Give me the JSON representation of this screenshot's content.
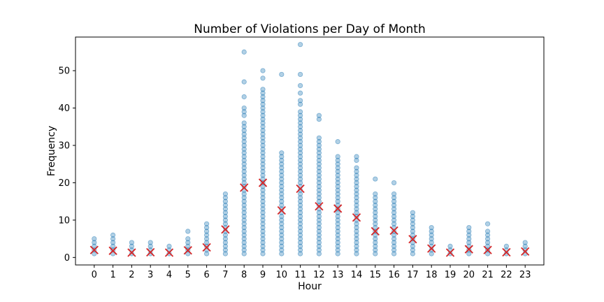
{
  "chart_data": {
    "type": "scatter",
    "title": "Number of Violations per Day of Month",
    "xlabel": "Hour",
    "ylabel": "Frequency",
    "xlim": [
      -1,
      24
    ],
    "ylim": [
      -2,
      59
    ],
    "xticks": [
      0,
      1,
      2,
      3,
      4,
      5,
      6,
      7,
      8,
      9,
      10,
      11,
      12,
      13,
      14,
      15,
      16,
      17,
      18,
      19,
      20,
      21,
      22,
      23
    ],
    "yticks": [
      0,
      10,
      20,
      30,
      40,
      50
    ],
    "grid": false,
    "legend": "none",
    "colors": {
      "points": "#1f77b4",
      "mean_marker": "#d62728"
    },
    "series": [
      {
        "marker": "circle",
        "hours": [
          {
            "x": 0,
            "values": [
              1,
              2,
              3,
              4,
              5
            ]
          },
          {
            "x": 1,
            "values": [
              1,
              2,
              3,
              4,
              5,
              6
            ]
          },
          {
            "x": 2,
            "values": [
              1,
              2,
              3,
              4
            ]
          },
          {
            "x": 3,
            "values": [
              1,
              2,
              3,
              4
            ]
          },
          {
            "x": 4,
            "values": [
              1,
              2,
              3
            ]
          },
          {
            "x": 5,
            "values": [
              1,
              2,
              3,
              4,
              5,
              7
            ]
          },
          {
            "x": 6,
            "values": [
              1,
              2,
              3,
              4,
              5,
              6,
              7,
              8,
              9
            ]
          },
          {
            "x": 7,
            "values": [
              1,
              2,
              3,
              4,
              5,
              6,
              7,
              8,
              9,
              10,
              11,
              12,
              13,
              14,
              15,
              16,
              17
            ]
          },
          {
            "x": 8,
            "values": [
              1,
              2,
              3,
              4,
              5,
              6,
              7,
              8,
              9,
              10,
              11,
              12,
              13,
              14,
              15,
              16,
              17,
              18,
              19,
              20,
              21,
              22,
              23,
              24,
              25,
              26,
              27,
              28,
              29,
              30,
              31,
              32,
              33,
              34,
              35,
              36,
              38,
              39,
              40,
              43,
              47,
              55
            ]
          },
          {
            "x": 9,
            "values": [
              1,
              2,
              3,
              4,
              5,
              6,
              7,
              8,
              9,
              10,
              11,
              12,
              13,
              14,
              15,
              16,
              17,
              18,
              19,
              20,
              21,
              22,
              23,
              24,
              25,
              26,
              27,
              28,
              29,
              30,
              31,
              32,
              33,
              34,
              35,
              36,
              37,
              38,
              39,
              40,
              41,
              42,
              43,
              44,
              45,
              48,
              50
            ]
          },
          {
            "x": 10,
            "values": [
              1,
              2,
              3,
              4,
              5,
              6,
              7,
              8,
              9,
              10,
              11,
              12,
              13,
              14,
              15,
              16,
              17,
              18,
              19,
              20,
              21,
              22,
              23,
              24,
              25,
              26,
              27,
              28,
              49
            ]
          },
          {
            "x": 11,
            "values": [
              1,
              2,
              3,
              4,
              5,
              6,
              7,
              8,
              9,
              10,
              11,
              12,
              13,
              14,
              15,
              16,
              17,
              18,
              19,
              20,
              21,
              22,
              23,
              24,
              25,
              26,
              27,
              28,
              29,
              30,
              31,
              32,
              33,
              34,
              35,
              36,
              37,
              38,
              39,
              41,
              42,
              44,
              46,
              49,
              57
            ]
          },
          {
            "x": 12,
            "values": [
              1,
              2,
              3,
              4,
              5,
              6,
              7,
              8,
              9,
              10,
              11,
              12,
              13,
              14,
              15,
              16,
              17,
              18,
              19,
              20,
              21,
              22,
              23,
              24,
              25,
              26,
              27,
              28,
              29,
              30,
              31,
              32,
              37,
              38
            ]
          },
          {
            "x": 13,
            "values": [
              1,
              2,
              3,
              4,
              5,
              6,
              7,
              8,
              9,
              10,
              11,
              12,
              13,
              14,
              15,
              16,
              17,
              18,
              19,
              20,
              21,
              22,
              23,
              24,
              25,
              26,
              27,
              31
            ]
          },
          {
            "x": 14,
            "values": [
              1,
              2,
              3,
              4,
              5,
              6,
              7,
              8,
              9,
              10,
              11,
              12,
              13,
              14,
              15,
              16,
              17,
              18,
              19,
              20,
              21,
              22,
              23,
              24,
              26,
              27
            ]
          },
          {
            "x": 15,
            "values": [
              1,
              2,
              3,
              4,
              5,
              6,
              7,
              8,
              9,
              10,
              11,
              12,
              13,
              14,
              15,
              16,
              17,
              21
            ]
          },
          {
            "x": 16,
            "values": [
              1,
              2,
              3,
              4,
              5,
              6,
              7,
              8,
              9,
              10,
              11,
              12,
              13,
              14,
              15,
              16,
              17,
              20
            ]
          },
          {
            "x": 17,
            "values": [
              1,
              2,
              3,
              4,
              5,
              6,
              7,
              8,
              9,
              10,
              11,
              12
            ]
          },
          {
            "x": 18,
            "values": [
              1,
              2,
              3,
              4,
              5,
              6,
              7,
              8
            ]
          },
          {
            "x": 19,
            "values": [
              1,
              2,
              3
            ]
          },
          {
            "x": 20,
            "values": [
              1,
              2,
              3,
              4,
              5,
              6,
              7,
              8
            ]
          },
          {
            "x": 21,
            "values": [
              1,
              2,
              3,
              4,
              5,
              6,
              7,
              9
            ]
          },
          {
            "x": 22,
            "values": [
              1,
              2,
              3
            ]
          },
          {
            "x": 23,
            "values": [
              1,
              2,
              3,
              4
            ]
          }
        ]
      },
      {
        "marker": "x",
        "points": [
          {
            "x": 0,
            "y": 2.0
          },
          {
            "x": 1,
            "y": 1.8
          },
          {
            "x": 2,
            "y": 1.3
          },
          {
            "x": 3,
            "y": 1.4
          },
          {
            "x": 4,
            "y": 1.3
          },
          {
            "x": 5,
            "y": 1.9
          },
          {
            "x": 6,
            "y": 2.7
          },
          {
            "x": 7,
            "y": 7.5
          },
          {
            "x": 8,
            "y": 18.7
          },
          {
            "x": 9,
            "y": 20.0
          },
          {
            "x": 10,
            "y": 12.6
          },
          {
            "x": 11,
            "y": 18.4
          },
          {
            "x": 12,
            "y": 13.7
          },
          {
            "x": 13,
            "y": 13.1
          },
          {
            "x": 14,
            "y": 10.7
          },
          {
            "x": 15,
            "y": 7.0
          },
          {
            "x": 16,
            "y": 7.2
          },
          {
            "x": 17,
            "y": 4.9
          },
          {
            "x": 18,
            "y": 2.4
          },
          {
            "x": 19,
            "y": 1.3
          },
          {
            "x": 20,
            "y": 2.2
          },
          {
            "x": 21,
            "y": 2.0
          },
          {
            "x": 22,
            "y": 1.4
          },
          {
            "x": 23,
            "y": 1.6
          }
        ]
      }
    ]
  }
}
